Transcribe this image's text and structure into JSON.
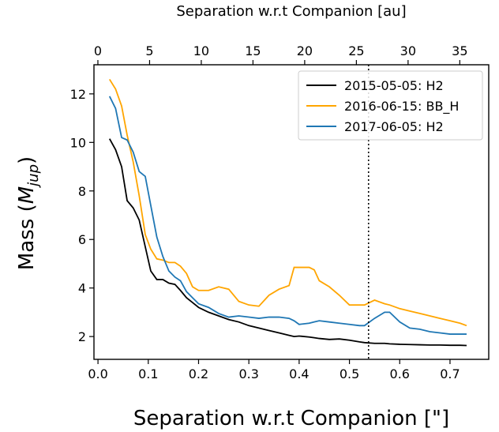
{
  "chart_data": {
    "type": "line",
    "xlabel": "Separation w.r.t Companion [\"]",
    "x2label": "Separation w.r.t Companion [au]",
    "ylabel": [
      "Mass (",
      "M",
      "jup",
      ")"
    ],
    "x": [
      0.023,
      0.035,
      0.047,
      0.058,
      0.07,
      0.082,
      0.094,
      0.105,
      0.117,
      0.129,
      0.141,
      0.153,
      0.164,
      0.176,
      0.188,
      0.2,
      0.22,
      0.24,
      0.26,
      0.28,
      0.3,
      0.32,
      0.34,
      0.36,
      0.38,
      0.39,
      0.4,
      0.42,
      0.43,
      0.44,
      0.46,
      0.48,
      0.5,
      0.52,
      0.53,
      0.55,
      0.57,
      0.58,
      0.6,
      0.62,
      0.64,
      0.66,
      0.68,
      0.7,
      0.72,
      0.733
    ],
    "series": [
      {
        "name": "2015-05-05: H2",
        "color": "#000000",
        "values": [
          10.15,
          9.7,
          9.0,
          7.6,
          7.3,
          6.8,
          5.7,
          4.7,
          4.35,
          4.35,
          4.2,
          4.15,
          3.9,
          3.6,
          3.4,
          3.2,
          3.0,
          2.85,
          2.7,
          2.6,
          2.45,
          2.35,
          2.25,
          2.15,
          2.05,
          2.0,
          2.02,
          1.98,
          1.95,
          1.92,
          1.88,
          1.9,
          1.85,
          1.78,
          1.75,
          1.72,
          1.72,
          1.7,
          1.68,
          1.67,
          1.66,
          1.65,
          1.65,
          1.64,
          1.64,
          1.63
        ]
      },
      {
        "name": "2016-06-15: BB_H",
        "color": "#ffa500",
        "values": [
          12.6,
          12.2,
          11.5,
          10.3,
          9.2,
          7.8,
          6.2,
          5.6,
          5.2,
          5.15,
          5.05,
          5.05,
          4.9,
          4.6,
          4.05,
          3.9,
          3.9,
          4.05,
          3.95,
          3.45,
          3.3,
          3.25,
          3.7,
          3.95,
          4.1,
          4.85,
          4.85,
          4.85,
          4.75,
          4.3,
          4.05,
          3.7,
          3.3,
          3.3,
          3.3,
          3.5,
          3.35,
          3.3,
          3.15,
          3.05,
          2.95,
          2.85,
          2.75,
          2.65,
          2.55,
          2.45
        ]
      },
      {
        "name": "2017-06-05: H2",
        "color": "#1f77b4",
        "values": [
          11.9,
          11.4,
          10.2,
          10.1,
          9.6,
          8.8,
          8.6,
          7.4,
          6.1,
          5.3,
          4.7,
          4.45,
          4.3,
          3.85,
          3.6,
          3.35,
          3.2,
          2.95,
          2.8,
          2.85,
          2.8,
          2.75,
          2.8,
          2.8,
          2.75,
          2.65,
          2.5,
          2.55,
          2.6,
          2.65,
          2.6,
          2.55,
          2.5,
          2.45,
          2.45,
          2.75,
          3.0,
          3.0,
          2.6,
          2.35,
          2.3,
          2.2,
          2.15,
          2.1,
          2.1,
          2.1
        ]
      }
    ],
    "xlim": [
      -0.008,
      0.777
    ],
    "xticks": [
      {
        "value": 0,
        "label": "0.0"
      },
      0.1,
      0.2,
      0.3,
      0.4,
      0.5,
      0.6,
      0.7
    ],
    "x2lim": [
      -0.38,
      37.8
    ],
    "x2ticks": [
      0,
      5,
      10,
      15,
      20,
      25,
      30,
      35
    ],
    "ylim": [
      1.06,
      13.2
    ],
    "yticks": [
      2,
      4,
      6,
      8,
      10,
      12
    ],
    "vline": 0.538,
    "legend": "upper right",
    "grid": false
  }
}
